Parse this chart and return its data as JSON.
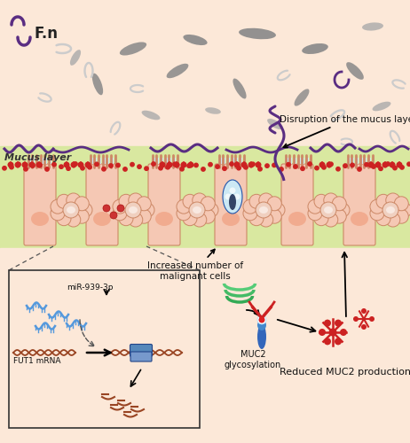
{
  "bg_pink": "#fce8d8",
  "bg_mucus": "#d9e8a0",
  "fn_purple": "#5a2d82",
  "gray_dark": "#888888",
  "gray_med": "#aaaaaa",
  "gray_light": "#cccccc",
  "cell_pink": "#f5c8b4",
  "cell_border": "#cc8866",
  "cell_nucleus": "#f0a080",
  "red_color": "#cc2222",
  "blue_light": "#cce8f4",
  "blue_dark": "#2255aa",
  "blue_mid": "#4488cc",
  "brown_rna": "#994422",
  "blue_rna": "#5599dd",
  "green_golgi": "#44aa66",
  "fn_label": "F.n",
  "mucus_label": "Mucus layer",
  "disruption_label": "Disruption of the mucus layer",
  "malignant_label": "Increased number of\nmalignant cells",
  "reduced_label": "Reduced MUC2 production",
  "mir_label": "miR-939-3p",
  "fut1_label": "FUT1 mRNA",
  "muc2_label": "MUC2\nglycosylation"
}
